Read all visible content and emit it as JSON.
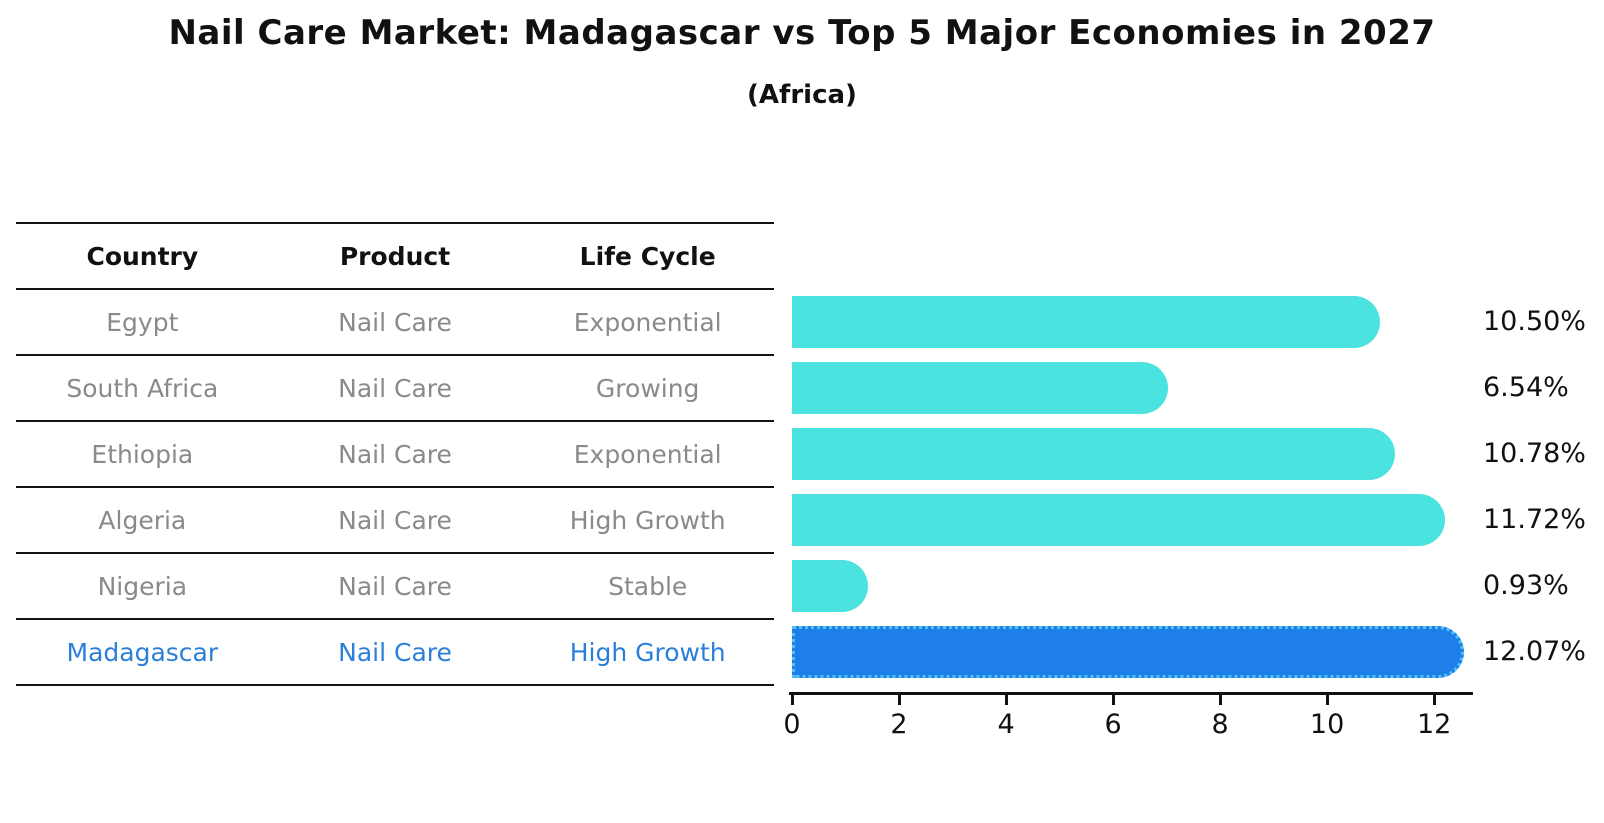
{
  "title": "Nail Care Market: Madagascar vs Top 5 Major Economies in 2027",
  "subtitle": "(Africa)",
  "table": {
    "headers": [
      "Country",
      "Product",
      "Life Cycle"
    ],
    "rows": [
      [
        "Egypt",
        "Nail Care",
        "Exponential"
      ],
      [
        "South Africa",
        "Nail Care",
        "Growing"
      ],
      [
        "Ethiopia",
        "Nail Care",
        "Exponential"
      ],
      [
        "Algeria",
        "Nail Care",
        "High Growth"
      ],
      [
        "Nigeria",
        "Nail Care",
        "Stable"
      ],
      [
        "Madagascar",
        "Nail Care",
        "High Growth"
      ]
    ],
    "highlight_row_index": 5
  },
  "chart_data": {
    "type": "bar",
    "orientation": "horizontal",
    "categories": [
      "Egypt",
      "South Africa",
      "Ethiopia",
      "Algeria",
      "Nigeria",
      "Madagascar"
    ],
    "values": [
      10.5,
      6.54,
      10.78,
      11.72,
      0.93,
      12.07
    ],
    "value_labels": [
      "10.50%",
      "6.54%",
      "10.78%",
      "11.72%",
      "0.93%",
      "12.07%"
    ],
    "xticks": [
      0,
      2,
      4,
      6,
      8,
      10,
      12
    ],
    "xlim": [
      0,
      12.67
    ],
    "grid": false,
    "legend": "none",
    "bar_color": "#4be3e0",
    "highlight_index": 5,
    "highlight_bar_color": "#1f7fe8",
    "highlight_border_color": "#4fc3f7"
  },
  "colors": {
    "background": "#ffffff",
    "title_text": "#111111",
    "table_line": "#111111",
    "table_header_text": "#111111",
    "table_row_text": "#8a8a8a",
    "highlight_text": "#2b7fd9",
    "axis_text": "#111111"
  }
}
